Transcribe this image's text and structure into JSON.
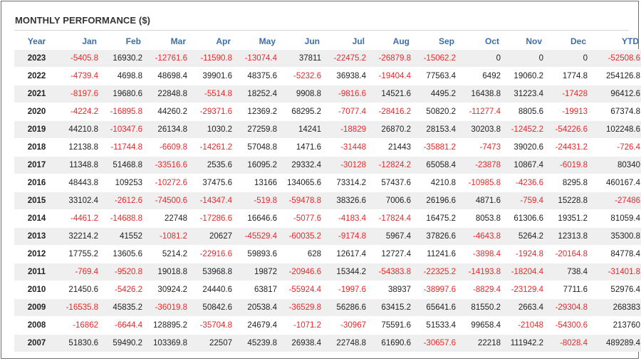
{
  "title": "MONTHLY PERFORMANCE ($)",
  "colors": {
    "header": "#3d6ea8",
    "negative": "#e8282a",
    "stripe": "#efefef"
  },
  "columns": [
    "Year",
    "Jan",
    "Feb",
    "Mar",
    "Apr",
    "May",
    "Jun",
    "Jul",
    "Aug",
    "Sep",
    "Oct",
    "Nov",
    "Dec",
    "YTD"
  ],
  "rows": [
    [
      "2023",
      "-5405.8",
      "16930.2",
      "-12761.6",
      "-11590.8",
      "-13074.4",
      "37811",
      "-22475.2",
      "-26879.8",
      "-15062.2",
      "0",
      "0",
      "0",
      "-52508.6"
    ],
    [
      "2022",
      "-4739.4",
      "4698.8",
      "48698.4",
      "39901.6",
      "48375.6",
      "-5232.6",
      "36938.4",
      "-19404.4",
      "77563.4",
      "6492",
      "19060.2",
      "1774.8",
      "254126.8"
    ],
    [
      "2021",
      "-8197.6",
      "19680.6",
      "22848.8",
      "-5514.8",
      "18252.4",
      "9908.8",
      "-9816.6",
      "14521.6",
      "4495.2",
      "16438.8",
      "31223.4",
      "-17428",
      "96412.6"
    ],
    [
      "2020",
      "-4224.2",
      "-16895.8",
      "44260.2",
      "-29371.6",
      "12369.2",
      "68295.2",
      "-7077.4",
      "-28416.2",
      "50820.2",
      "-11277.4",
      "8805.6",
      "-19913",
      "67374.8"
    ],
    [
      "2019",
      "44210.8",
      "-10347.6",
      "26134.8",
      "1030.2",
      "27259.8",
      "14241",
      "-18829",
      "26870.2",
      "28153.4",
      "30203.8",
      "-12452.2",
      "-54226.6",
      "102248.6"
    ],
    [
      "2018",
      "12138.8",
      "-11744.8",
      "-6609.8",
      "-14261.2",
      "57048.8",
      "1471.6",
      "-31448",
      "21443",
      "-35881.2",
      "-7473",
      "39020.6",
      "-24431.2",
      "-726.4"
    ],
    [
      "2017",
      "11348.8",
      "51468.8",
      "-33516.6",
      "2535.6",
      "16095.2",
      "29332.4",
      "-30128",
      "-12824.2",
      "65058.4",
      "-23878",
      "10867.4",
      "-6019.8",
      "80340"
    ],
    [
      "2016",
      "48443.8",
      "109253",
      "-10272.6",
      "37475.6",
      "13166",
      "134065.6",
      "73314.2",
      "57437.6",
      "4210.8",
      "-10985.8",
      "-4236.6",
      "8295.8",
      "460167.4"
    ],
    [
      "2015",
      "33102.4",
      "-2612.6",
      "-74500.6",
      "-14347.4",
      "-519.8",
      "-59478.8",
      "38326.6",
      "7006.6",
      "26196.6",
      "4871.6",
      "-759.4",
      "15228.8",
      "-27486"
    ],
    [
      "2014",
      "-4461.2",
      "-14688.8",
      "22748",
      "-17286.6",
      "16646.6",
      "-5077.6",
      "-4183.4",
      "-17824.4",
      "16475.2",
      "8053.8",
      "61306.6",
      "19351.2",
      "81059.4"
    ],
    [
      "2013",
      "32214.2",
      "41552",
      "-1081.2",
      "20627",
      "-45529.4",
      "-60035.2",
      "-9174.8",
      "5967.4",
      "37826.6",
      "-4643.8",
      "5264.2",
      "12313.8",
      "35300.8"
    ],
    [
      "2012",
      "17755.2",
      "13605.6",
      "5214.2",
      "-22916.6",
      "59893.6",
      "628",
      "12617.4",
      "12727.4",
      "11241.6",
      "-3898.4",
      "-1924.8",
      "-20164.8",
      "84778.4"
    ],
    [
      "2011",
      "-769.4",
      "-9520.8",
      "19018.8",
      "53968.8",
      "19872",
      "-20946.6",
      "15344.2",
      "-54383.8",
      "-22325.2",
      "-14193.8",
      "-18204.4",
      "738.4",
      "-31401.8"
    ],
    [
      "2010",
      "21450.6",
      "-5426.2",
      "30924.2",
      "24440.6",
      "63817",
      "-55924.4",
      "-1997.6",
      "38937",
      "-38997.6",
      "-8829.4",
      "-23129.4",
      "7711.6",
      "52976.4"
    ],
    [
      "2009",
      "-16535.8",
      "45835.2",
      "-36019.8",
      "50842.6",
      "20538.4",
      "-36529.8",
      "56286.6",
      "63415.2",
      "65641.6",
      "81550.2",
      "2663.4",
      "-29304.8",
      "268383"
    ],
    [
      "2008",
      "-16862",
      "-6644.4",
      "128895.2",
      "-35704.8",
      "24679.4",
      "-1071.2",
      "-30967",
      "75591.6",
      "51533.4",
      "99658.4",
      "-21048",
      "-54300.6",
      "213760"
    ],
    [
      "2007",
      "51830.6",
      "59490.2",
      "103369.8",
      "22507",
      "45239.8",
      "26938.4",
      "22748.8",
      "61690.6",
      "-30657.6",
      "22218",
      "111942.2",
      "-8028.4",
      "489289.4"
    ]
  ]
}
